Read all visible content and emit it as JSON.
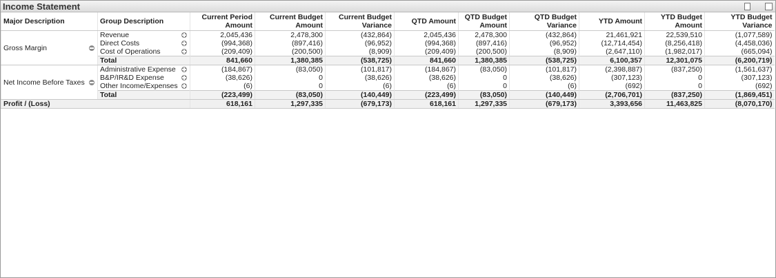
{
  "title": "Income Statement",
  "table": {
    "headers": [
      "Major Description",
      "Group Description",
      "Current Period Amount",
      "Current Budget Amount",
      "Current Budget Variance",
      "QTD Amount",
      "QTD Budget Amount",
      "QTD Budget Variance",
      "YTD Amount",
      "YTD Budget Amount",
      "YTD Budget Variance"
    ],
    "groups": [
      {
        "major": "Gross Margin",
        "rows": [
          {
            "group": "Revenue",
            "values": [
              "2,045,436",
              "2,478,300",
              "(432,864)",
              "2,045,436",
              "2,478,300",
              "(432,864)",
              "21,461,921",
              "22,539,510",
              "(1,077,589)"
            ]
          },
          {
            "group": "Direct Costs",
            "values": [
              "(994,368)",
              "(897,416)",
              "(96,952)",
              "(994,368)",
              "(897,416)",
              "(96,952)",
              "(12,714,454)",
              "(8,256,418)",
              "(4,458,036)"
            ]
          },
          {
            "group": "Cost of Operations",
            "values": [
              "(209,409)",
              "(200,500)",
              "(8,909)",
              "(209,409)",
              "(200,500)",
              "(8,909)",
              "(2,647,110)",
              "(1,982,017)",
              "(665,094)"
            ]
          }
        ],
        "total": {
          "label": "Total",
          "values": [
            "841,660",
            "1,380,385",
            "(538,725)",
            "841,660",
            "1,380,385",
            "(538,725)",
            "6,100,357",
            "12,301,075",
            "(6,200,719)"
          ]
        }
      },
      {
        "major": "Net Income Before Taxes",
        "rows": [
          {
            "group": "Administrative Expense",
            "values": [
              "(184,867)",
              "(83,050)",
              "(101,817)",
              "(184,867)",
              "(83,050)",
              "(101,817)",
              "(2,398,887)",
              "(837,250)",
              "(1,561,637)"
            ]
          },
          {
            "group": "B&P/IR&D Expense",
            "values": [
              "(38,626)",
              "0",
              "(38,626)",
              "(38,626)",
              "0",
              "(38,626)",
              "(307,123)",
              "0",
              "(307,123)"
            ]
          },
          {
            "group": "Other Income/Expenses",
            "values": [
              "(6)",
              "0",
              "(6)",
              "(6)",
              "0",
              "(6)",
              "(692)",
              "0",
              "(692)"
            ]
          }
        ],
        "total": {
          "label": "Total",
          "values": [
            "(223,499)",
            "(83,050)",
            "(140,449)",
            "(223,499)",
            "(83,050)",
            "(140,449)",
            "(2,706,701)",
            "(837,250)",
            "(1,869,451)"
          ]
        }
      }
    ],
    "footer": {
      "label": "Profit / (Loss)",
      "values": [
        "618,161",
        "1,297,335",
        "(679,173)",
        "618,161",
        "1,297,335",
        "(679,173)",
        "3,393,656",
        "11,463,825",
        "(8,070,170)"
      ]
    }
  }
}
